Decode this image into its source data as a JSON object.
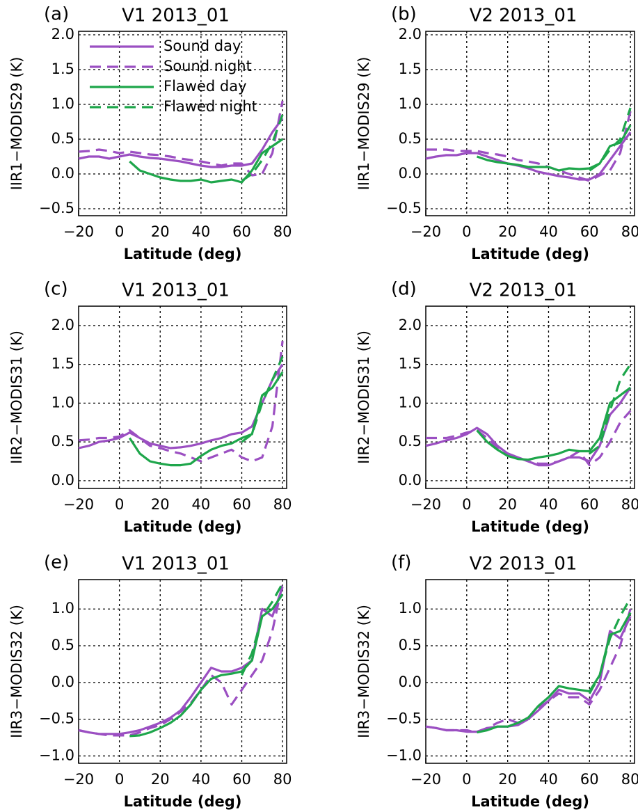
{
  "chart_data": [
    {
      "type": "line",
      "panel_label": "(a)",
      "title": "V1 2013_01",
      "xlabel": "Latitude (deg)",
      "ylabel": "IIR1−MODIS29 (K)",
      "x": [
        -20,
        -15,
        -10,
        -5,
        0,
        5,
        10,
        15,
        20,
        25,
        30,
        35,
        40,
        45,
        50,
        55,
        60,
        65,
        70,
        75,
        80
      ],
      "xlim": [
        -20,
        82
      ],
      "xticks": [
        {
          "value": -20,
          "label": "−20"
        },
        0,
        20,
        40,
        60,
        80
      ],
      "ylim": [
        -0.6,
        2.05
      ],
      "yticks": [
        {
          "value": -0.5,
          "label": "−0.5"
        },
        {
          "value": 0,
          "label": "0.0"
        },
        0.5,
        {
          "value": 1,
          "label": "1.0"
        },
        1.5,
        {
          "value": 2,
          "label": "2.0"
        }
      ],
      "grid": true,
      "legend": "upper left",
      "series": [
        {
          "name": "Sound day",
          "color": "#9b4fc2",
          "dash": false,
          "values": [
            0.22,
            0.25,
            0.25,
            0.22,
            0.25,
            0.28,
            0.25,
            0.23,
            0.22,
            0.2,
            0.18,
            0.15,
            0.12,
            0.1,
            0.1,
            0.12,
            0.12,
            0.15,
            0.35,
            0.6,
            0.8
          ]
        },
        {
          "name": "Sound night",
          "color": "#9b4fc2",
          "dash": true,
          "values": [
            0.32,
            0.33,
            0.35,
            0.33,
            0.3,
            0.32,
            0.3,
            0.28,
            0.27,
            0.25,
            0.22,
            0.2,
            0.18,
            0.15,
            0.12,
            0.15,
            0.15,
            -0.02,
            0.0,
            0.3,
            1.05
          ]
        },
        {
          "name": "Flawed day",
          "color": "#1ea64b",
          "dash": false,
          "values": [
            null,
            null,
            null,
            null,
            null,
            0.18,
            0.05,
            0.0,
            -0.05,
            -0.08,
            -0.1,
            -0.1,
            -0.08,
            -0.12,
            -0.1,
            -0.08,
            -0.12,
            0.05,
            0.3,
            0.4,
            0.5
          ]
        },
        {
          "name": "Flawed night",
          "color": "#1ea64b",
          "dash": true,
          "values": [
            null,
            null,
            null,
            null,
            null,
            null,
            null,
            null,
            null,
            null,
            null,
            null,
            null,
            null,
            null,
            null,
            -0.1,
            0.0,
            0.2,
            0.45,
            0.85
          ]
        }
      ]
    },
    {
      "type": "line",
      "panel_label": "(b)",
      "title": "V2 2013_01",
      "xlabel": "Latitude (deg)",
      "ylabel": "IIR1−MODIS29 (K)",
      "x": [
        -20,
        -15,
        -10,
        -5,
        0,
        5,
        10,
        15,
        20,
        25,
        30,
        35,
        40,
        45,
        50,
        55,
        60,
        65,
        70,
        75,
        80
      ],
      "xlim": [
        -20,
        82
      ],
      "xticks": [
        {
          "value": -20,
          "label": "−20"
        },
        0,
        20,
        40,
        60,
        80
      ],
      "ylim": [
        -0.6,
        2.05
      ],
      "yticks": [
        {
          "value": -0.5,
          "label": "−0.5"
        },
        {
          "value": 0,
          "label": "0.0"
        },
        0.5,
        {
          "value": 1,
          "label": "1.0"
        },
        1.5,
        {
          "value": 2,
          "label": "2.0"
        }
      ],
      "grid": true,
      "series": [
        {
          "color": "#9b4fc2",
          "dash": false,
          "values": [
            0.22,
            0.25,
            0.27,
            0.27,
            0.3,
            0.3,
            0.25,
            0.2,
            0.15,
            0.12,
            0.08,
            0.03,
            0.0,
            -0.03,
            -0.05,
            -0.08,
            -0.08,
            0.0,
            0.2,
            0.4,
            0.6
          ]
        },
        {
          "color": "#9b4fc2",
          "dash": true,
          "values": [
            0.35,
            0.35,
            0.35,
            0.33,
            0.33,
            0.33,
            0.3,
            0.28,
            0.25,
            0.2,
            0.18,
            0.15,
            0.1,
            0.05,
            0.0,
            -0.05,
            -0.1,
            -0.02,
            0.05,
            0.3,
            0.9
          ]
        },
        {
          "color": "#1ea64b",
          "dash": false,
          "values": [
            null,
            null,
            null,
            null,
            null,
            0.25,
            0.2,
            0.17,
            0.15,
            0.13,
            0.1,
            0.1,
            0.1,
            0.05,
            0.08,
            0.07,
            0.08,
            0.15,
            0.4,
            0.45,
            0.7
          ]
        },
        {
          "color": "#1ea64b",
          "dash": true,
          "values": [
            null,
            null,
            null,
            null,
            null,
            null,
            null,
            null,
            null,
            null,
            null,
            null,
            null,
            null,
            null,
            null,
            0.05,
            0.15,
            0.35,
            0.5,
            0.95
          ]
        }
      ]
    },
    {
      "type": "line",
      "panel_label": "(c)",
      "title": "V1 2013_01",
      "xlabel": "Latitude (deg)",
      "ylabel": "IIR2−MODIS31 (K)",
      "x": [
        -20,
        -15,
        -10,
        -5,
        0,
        5,
        10,
        15,
        20,
        25,
        30,
        35,
        40,
        45,
        50,
        55,
        60,
        65,
        70,
        75,
        80
      ],
      "xlim": [
        -20,
        82
      ],
      "xticks": [
        {
          "value": -20,
          "label": "−20"
        },
        0,
        20,
        40,
        60,
        80
      ],
      "ylim": [
        -0.1,
        2.25
      ],
      "yticks": [
        {
          "value": 0,
          "label": "0.0"
        },
        0.5,
        {
          "value": 1,
          "label": "1.0"
        },
        1.5,
        {
          "value": 2,
          "label": "2.0"
        }
      ],
      "grid": true,
      "series": [
        {
          "color": "#9b4fc2",
          "dash": false,
          "values": [
            0.42,
            0.45,
            0.5,
            0.52,
            0.55,
            0.62,
            0.55,
            0.48,
            0.45,
            0.42,
            0.43,
            0.45,
            0.48,
            0.52,
            0.55,
            0.6,
            0.62,
            0.7,
            1.0,
            1.3,
            1.5
          ]
        },
        {
          "color": "#9b4fc2",
          "dash": true,
          "values": [
            0.52,
            0.53,
            0.55,
            0.55,
            0.57,
            0.65,
            0.55,
            0.45,
            0.42,
            0.38,
            0.35,
            0.3,
            0.25,
            0.3,
            0.35,
            0.4,
            0.3,
            0.25,
            0.3,
            0.7,
            1.8
          ]
        },
        {
          "color": "#1ea64b",
          "dash": false,
          "values": [
            null,
            null,
            null,
            null,
            null,
            0.55,
            0.35,
            0.25,
            0.22,
            0.2,
            0.2,
            0.22,
            0.32,
            0.4,
            0.45,
            0.48,
            0.55,
            0.6,
            1.1,
            1.2,
            1.4
          ]
        },
        {
          "color": "#1ea64b",
          "dash": true,
          "values": [
            null,
            null,
            null,
            null,
            null,
            null,
            null,
            null,
            null,
            null,
            null,
            null,
            null,
            null,
            null,
            null,
            0.5,
            0.6,
            1.0,
            1.3,
            1.6
          ]
        }
      ]
    },
    {
      "type": "line",
      "panel_label": "(d)",
      "title": "V2 2013_01",
      "xlabel": "Latitude (deg)",
      "ylabel": "IIR2−MODIS31 (K)",
      "x": [
        -20,
        -15,
        -10,
        -5,
        0,
        5,
        10,
        15,
        20,
        25,
        30,
        35,
        40,
        45,
        50,
        55,
        60,
        65,
        70,
        75,
        80
      ],
      "xlim": [
        -20,
        82
      ],
      "xticks": [
        {
          "value": -20,
          "label": "−20"
        },
        0,
        20,
        40,
        60,
        80
      ],
      "ylim": [
        -0.1,
        2.25
      ],
      "yticks": [
        {
          "value": 0,
          "label": "0.0"
        },
        0.5,
        {
          "value": 1,
          "label": "1.0"
        },
        1.5,
        {
          "value": 2,
          "label": "2.0"
        }
      ],
      "grid": true,
      "series": [
        {
          "color": "#9b4fc2",
          "dash": false,
          "values": [
            0.45,
            0.48,
            0.52,
            0.55,
            0.6,
            0.68,
            0.6,
            0.45,
            0.35,
            0.3,
            0.25,
            0.2,
            0.2,
            0.25,
            0.3,
            0.3,
            0.25,
            0.45,
            0.85,
            1.0,
            1.2
          ]
        },
        {
          "color": "#9b4fc2",
          "dash": true,
          "values": [
            0.55,
            0.55,
            0.55,
            0.58,
            0.62,
            0.65,
            0.55,
            0.42,
            0.35,
            0.3,
            0.25,
            0.22,
            0.22,
            0.25,
            0.3,
            0.38,
            0.2,
            0.3,
            0.5,
            0.75,
            0.9
          ]
        },
        {
          "color": "#1ea64b",
          "dash": false,
          "values": [
            null,
            null,
            null,
            null,
            null,
            0.65,
            0.5,
            0.4,
            0.32,
            0.28,
            0.27,
            0.3,
            0.32,
            0.35,
            0.4,
            0.38,
            0.38,
            0.55,
            1.0,
            1.1,
            1.2
          ]
        },
        {
          "color": "#1ea64b",
          "dash": true,
          "values": [
            null,
            null,
            null,
            null,
            null,
            null,
            null,
            null,
            null,
            null,
            null,
            null,
            null,
            null,
            null,
            null,
            0.35,
            0.45,
            0.9,
            1.3,
            1.5
          ]
        }
      ]
    },
    {
      "type": "line",
      "panel_label": "(e)",
      "title": "V1 2013_01",
      "xlabel": "Latitude (deg)",
      "ylabel": "IIR3−MODIS32 (K)",
      "x": [
        -20,
        -15,
        -10,
        -5,
        0,
        5,
        10,
        15,
        20,
        25,
        30,
        35,
        40,
        45,
        50,
        55,
        60,
        65,
        70,
        75,
        80
      ],
      "xlim": [
        -20,
        82
      ],
      "xticks": [
        {
          "value": -20,
          "label": "−20"
        },
        0,
        20,
        40,
        60,
        80
      ],
      "ylim": [
        -1.1,
        1.4
      ],
      "yticks": [
        {
          "value": -1,
          "label": "−1.0"
        },
        {
          "value": -0.5,
          "label": "−0.5"
        },
        {
          "value": 0,
          "label": "0.0"
        },
        0.5,
        {
          "value": 1,
          "label": "1.0"
        }
      ],
      "grid": true,
      "series": [
        {
          "color": "#9b4fc2",
          "dash": false,
          "values": [
            -0.65,
            -0.68,
            -0.7,
            -0.7,
            -0.7,
            -0.68,
            -0.65,
            -0.6,
            -0.55,
            -0.48,
            -0.38,
            -0.2,
            0.0,
            0.2,
            0.15,
            0.15,
            0.2,
            0.3,
            1.0,
            0.9,
            1.3
          ]
        },
        {
          "color": "#9b4fc2",
          "dash": true,
          "values": [
            -0.65,
            -0.68,
            -0.7,
            -0.72,
            -0.72,
            -0.72,
            -0.68,
            -0.62,
            -0.58,
            -0.5,
            -0.4,
            -0.28,
            -0.1,
            0.1,
            0.0,
            -0.3,
            -0.1,
            0.1,
            0.3,
            0.7,
            1.35
          ]
        },
        {
          "color": "#1ea64b",
          "dash": false,
          "values": [
            null,
            null,
            null,
            null,
            null,
            -0.73,
            -0.72,
            -0.68,
            -0.62,
            -0.55,
            -0.45,
            -0.3,
            -0.1,
            0.05,
            0.1,
            0.12,
            0.15,
            0.3,
            0.9,
            1.0,
            1.2
          ]
        },
        {
          "color": "#1ea64b",
          "dash": true,
          "values": [
            null,
            null,
            null,
            null,
            null,
            null,
            null,
            null,
            null,
            null,
            null,
            null,
            null,
            null,
            null,
            null,
            0.1,
            0.4,
            0.9,
            1.1,
            1.35
          ]
        }
      ]
    },
    {
      "type": "line",
      "panel_label": "(f)",
      "title": "V2 2013_01",
      "xlabel": "Latitude (deg)",
      "ylabel": "IIR3−MODIS32 (K)",
      "x": [
        -20,
        -15,
        -10,
        -5,
        0,
        5,
        10,
        15,
        20,
        25,
        30,
        35,
        40,
        45,
        50,
        55,
        60,
        65,
        70,
        75,
        80
      ],
      "xlim": [
        -20,
        82
      ],
      "xticks": [
        {
          "value": -20,
          "label": "−20"
        },
        0,
        20,
        40,
        60,
        80
      ],
      "ylim": [
        -1.1,
        1.4
      ],
      "yticks": [
        {
          "value": -1,
          "label": "−1.0"
        },
        {
          "value": -0.5,
          "label": "−0.5"
        },
        {
          "value": 0,
          "label": "0.0"
        },
        0.5,
        {
          "value": 1,
          "label": "1.0"
        }
      ],
      "grid": true,
      "series": [
        {
          "color": "#9b4fc2",
          "dash": false,
          "values": [
            -0.6,
            -0.62,
            -0.65,
            -0.65,
            -0.67,
            -0.67,
            -0.62,
            -0.6,
            -0.6,
            -0.58,
            -0.5,
            -0.38,
            -0.25,
            -0.1,
            -0.15,
            -0.15,
            -0.25,
            0.0,
            0.7,
            0.6,
            0.9
          ]
        },
        {
          "color": "#9b4fc2",
          "dash": true,
          "values": [
            -0.6,
            -0.62,
            -0.65,
            -0.65,
            -0.65,
            -0.68,
            -0.62,
            -0.55,
            -0.5,
            -0.55,
            -0.48,
            -0.35,
            -0.25,
            -0.15,
            -0.2,
            -0.2,
            -0.3,
            -0.1,
            0.2,
            0.5,
            1.0
          ]
        },
        {
          "color": "#1ea64b",
          "dash": false,
          "values": [
            null,
            null,
            null,
            null,
            null,
            -0.68,
            -0.65,
            -0.6,
            -0.6,
            -0.55,
            -0.48,
            -0.32,
            -0.2,
            -0.05,
            -0.08,
            -0.1,
            -0.12,
            0.1,
            0.65,
            0.7,
            0.95
          ]
        },
        {
          "color": "#1ea64b",
          "dash": true,
          "values": [
            null,
            null,
            null,
            null,
            null,
            null,
            null,
            null,
            null,
            null,
            null,
            null,
            null,
            null,
            null,
            null,
            -0.15,
            0.1,
            0.6,
            0.9,
            1.15
          ]
        }
      ]
    }
  ]
}
